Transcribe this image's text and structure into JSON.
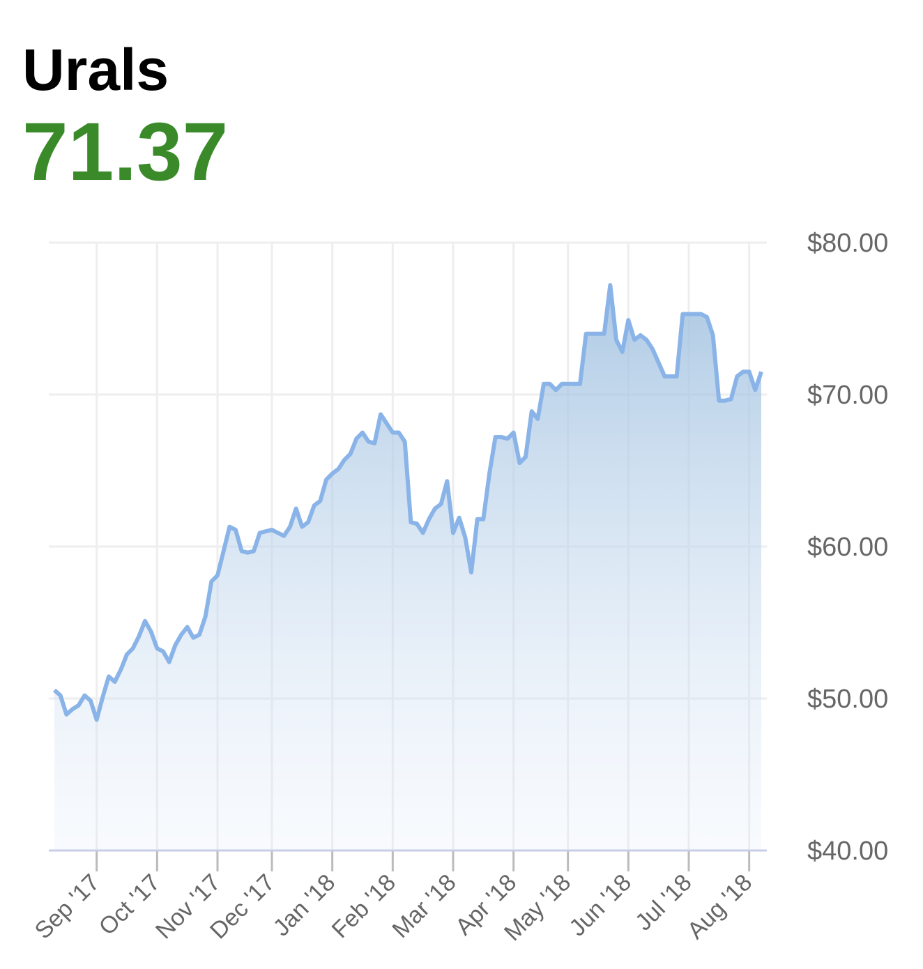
{
  "title": "Urals",
  "price": "71.37",
  "chart_data": {
    "type": "area",
    "categories": [
      null,
      null,
      null,
      null,
      null,
      null,
      null,
      "Sep '17",
      null,
      null,
      null,
      null,
      null,
      null,
      null,
      null,
      null,
      "Oct '17",
      null,
      null,
      null,
      null,
      null,
      null,
      null,
      null,
      null,
      "Nov '17",
      null,
      null,
      null,
      null,
      null,
      null,
      null,
      null,
      "Dec '17",
      null,
      null,
      null,
      null,
      null,
      null,
      null,
      null,
      null,
      "Jan '18",
      null,
      null,
      null,
      null,
      null,
      null,
      null,
      null,
      null,
      "Feb '18",
      null,
      null,
      null,
      null,
      null,
      null,
      null,
      null,
      null,
      "Mar '18",
      null,
      null,
      null,
      null,
      null,
      null,
      null,
      null,
      null,
      "Apr '18",
      null,
      null,
      null,
      null,
      null,
      null,
      null,
      null,
      "May '18",
      null,
      null,
      null,
      null,
      null,
      null,
      null,
      null,
      null,
      "Jun '18",
      null,
      null,
      null,
      null,
      null,
      null,
      null,
      null,
      null,
      "Jul '18",
      null,
      null,
      null,
      null,
      null,
      null,
      null,
      null,
      null,
      "Aug '18",
      null,
      null
    ],
    "series": [
      {
        "color": "#8ab4e8",
        "values": [
          50.55,
          50.2,
          48.95,
          49.3,
          49.55,
          50.2,
          49.85,
          48.6,
          50.1,
          51.45,
          51.1,
          51.9,
          52.9,
          53.3,
          54.1,
          55.1,
          54.4,
          53.3,
          53.1,
          52.4,
          53.5,
          54.2,
          54.7,
          54.0,
          54.2,
          55.4,
          57.7,
          58.1,
          59.7,
          61.3,
          61.1,
          59.7,
          59.6,
          59.7,
          60.9,
          61.0,
          61.1,
          60.9,
          60.7,
          61.3,
          62.5,
          61.3,
          61.6,
          62.7,
          63.0,
          64.4,
          64.8,
          65.1,
          65.7,
          66.1,
          67.1,
          67.5,
          66.9,
          66.8,
          68.7,
          68.1,
          67.5,
          67.5,
          66.9,
          61.6,
          61.5,
          60.9,
          61.8,
          62.5,
          62.8,
          64.3,
          60.9,
          61.9,
          60.6,
          58.3,
          61.8,
          61.8,
          64.8,
          67.2,
          67.2,
          67.1,
          67.5,
          65.5,
          65.9,
          68.9,
          68.4,
          70.7,
          70.7,
          70.3,
          70.7,
          70.7,
          70.7,
          70.7,
          74.0,
          74.0,
          74.0,
          74.0,
          77.2,
          73.6,
          72.8,
          74.9,
          73.6,
          73.9,
          73.6,
          73.0,
          72.1,
          71.2,
          71.2,
          71.2,
          75.3,
          75.3,
          75.3,
          75.3,
          75.1,
          73.9,
          69.6,
          69.6,
          69.7,
          71.2,
          71.5,
          71.5,
          70.3,
          71.5
        ]
      }
    ],
    "ylim": [
      40,
      80
    ],
    "yticks": [
      {
        "value": 40,
        "label": "$40.00"
      },
      {
        "value": 50,
        "label": "$50.00"
      },
      {
        "value": 60,
        "label": "$60.00"
      },
      {
        "value": 70,
        "label": "$70.00"
      },
      {
        "value": 80,
        "label": "$80.00"
      }
    ],
    "grid": true
  }
}
